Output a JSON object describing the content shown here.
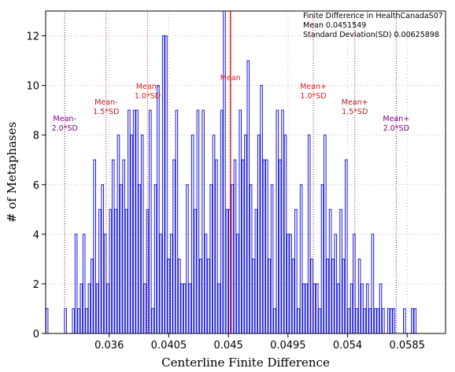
{
  "chart_data": {
    "type": "bar",
    "xlabel": "Centerline Finite Difference",
    "ylabel": "# of Metaphases",
    "xlim": [
      0.0312,
      0.0614
    ],
    "ylim": [
      0,
      13
    ],
    "grid": true,
    "x_ticks": [
      "0.036",
      "0.0405",
      "0.045",
      "0.0495",
      "0.054",
      "0.0585"
    ],
    "x_tick_values": [
      0.036,
      0.0405,
      0.045,
      0.0495,
      0.054,
      0.0585
    ],
    "y_ticks": [
      "0",
      "2",
      "4",
      "6",
      "8",
      "10",
      "12"
    ],
    "y_tick_values": [
      0,
      2,
      4,
      6,
      8,
      10,
      12
    ],
    "bin_start": 0.03122,
    "bin_width": 0.0002,
    "values": [
      1,
      0,
      0,
      0,
      0,
      0,
      0,
      1,
      0,
      0,
      1,
      4,
      1,
      2,
      4,
      1,
      2,
      3,
      7,
      2,
      5,
      6,
      4,
      2,
      5,
      7,
      5,
      8,
      6,
      7,
      5,
      9,
      8,
      9,
      9,
      6,
      8,
      2,
      5,
      9,
      1,
      6,
      10,
      4,
      12,
      12,
      3,
      4,
      7,
      9,
      3,
      2,
      2,
      6,
      2,
      8,
      5,
      9,
      3,
      9,
      4,
      3,
      6,
      8,
      7,
      2,
      9,
      13,
      5,
      5,
      6,
      7,
      4,
      9,
      7,
      8,
      11,
      6,
      3,
      5,
      8,
      10,
      7,
      7,
      3,
      6,
      1,
      9,
      7,
      9,
      8,
      4,
      4,
      3,
      5,
      1,
      6,
      2,
      2,
      8,
      3,
      2,
      2,
      1,
      6,
      8,
      3,
      5,
      3,
      4,
      2,
      5,
      3,
      7,
      1,
      2,
      4,
      1,
      3,
      2,
      1,
      2,
      1,
      4,
      1,
      1,
      2,
      1,
      0,
      1,
      1,
      1,
      0,
      0,
      0,
      1,
      0,
      0,
      1,
      1,
      0,
      0,
      0,
      0,
      0
    ],
    "mean_line": {
      "label": "Mean",
      "value": 0.0451549,
      "color": "#e0201c"
    },
    "sd_lines": [
      {
        "label": [
          "Mean-",
          "2.0*SD"
        ],
        "value": 0.032638,
        "color": "#800080"
      },
      {
        "label": [
          "Mean-",
          "1.5*SD"
        ],
        "value": 0.035766,
        "color": "#b22222"
      },
      {
        "label": [
          "Mean-",
          "1.0*SD"
        ],
        "value": 0.038896,
        "color": "#e0201c"
      },
      {
        "label": [
          "Mean+",
          "1.0*SD"
        ],
        "value": 0.051414,
        "color": "#e0201c"
      },
      {
        "label": [
          "Mean+",
          "1.5*SD"
        ],
        "value": 0.054544,
        "color": "#b22222"
      },
      {
        "label": [
          "Mean+",
          "2.0*SD"
        ],
        "value": 0.057673,
        "color": "#800080"
      }
    ],
    "bar_color": "#1818e0",
    "legend": {
      "title": "Finite Difference in HealthCanadaS07",
      "mean": "Mean 0.0451549",
      "sd": "Standard Deviation(SD) 0.00625898"
    }
  }
}
